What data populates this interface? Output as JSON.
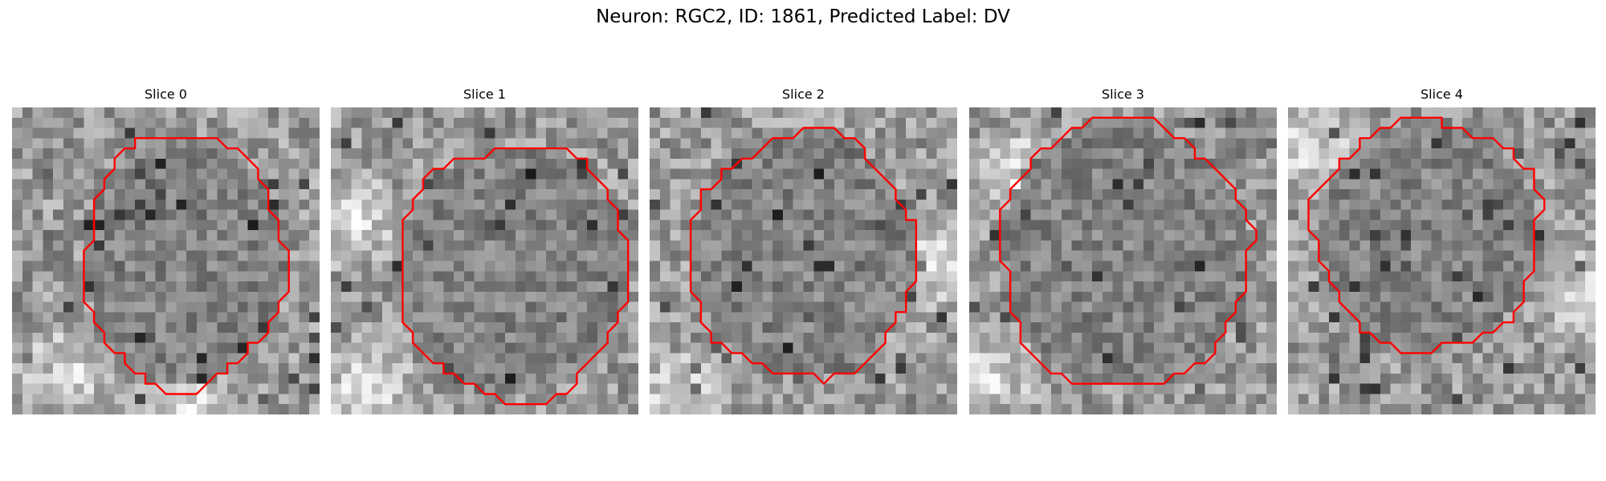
{
  "figure": {
    "title": "Neuron: RGC2, ID: 1861, Predicted Label: DV",
    "outline_color": "#ff0000",
    "colormap": "gray",
    "panels": [
      {
        "title": "Slice 0"
      },
      {
        "title": "Slice 1"
      },
      {
        "title": "Slice 2"
      },
      {
        "title": "Slice 3"
      },
      {
        "title": "Slice 4"
      }
    ]
  }
}
